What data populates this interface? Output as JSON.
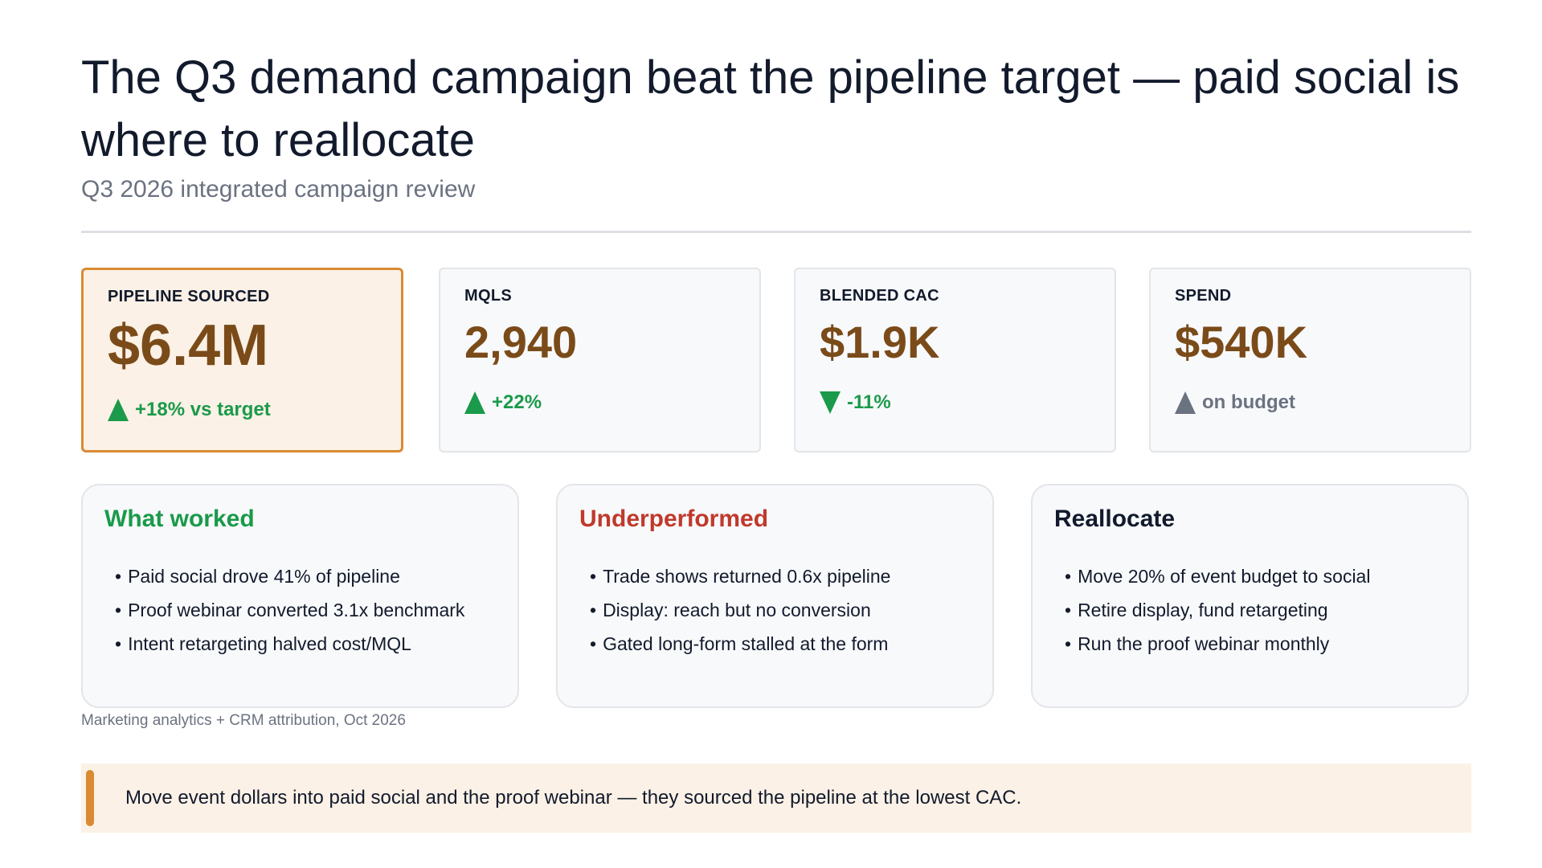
{
  "header": {
    "title": "The Q3 demand campaign beat the pipeline target — paid social is where to reallocate",
    "subtitle": "Q3 2026 integrated campaign review"
  },
  "kpis": [
    {
      "label": "PIPELINE SOURCED",
      "value": "$6.4M",
      "delta": "+18% vs target",
      "direction": "up",
      "tone": "positive"
    },
    {
      "label": "MQLS",
      "value": "2,940",
      "delta": "+22%",
      "direction": "up",
      "tone": "positive"
    },
    {
      "label": "BLENDED CAC",
      "value": "$1.9K",
      "delta": "-11%",
      "direction": "down",
      "tone": "positive"
    },
    {
      "label": "SPEND",
      "value": "$540K",
      "delta": "on budget",
      "direction": "up",
      "tone": "neutral"
    }
  ],
  "cards": [
    {
      "title": "What worked",
      "color": "#1a9a4a",
      "items": [
        "Paid social drove 41% of pipeline",
        "Proof webinar converted 3.1x benchmark",
        "Intent retargeting halved cost/MQL"
      ]
    },
    {
      "title": "Underperformed",
      "color": "#c0392b",
      "items": [
        "Trade shows returned 0.6x pipeline",
        "Display: reach but no conversion",
        "Gated long-form stalled at the form"
      ]
    },
    {
      "title": "Reallocate",
      "color": "#121a2c",
      "items": [
        "Move 20% of event budget to social",
        "Retire display, fund retargeting",
        "Run the proof webinar monthly"
      ]
    }
  ],
  "source": "Marketing analytics + CRM attribution, Oct 2026",
  "callout": "Move event dollars into paid social and the proof webinar — they sourced the pipeline at the lowest CAC.",
  "colors": {
    "accent": "#d98a33",
    "value": "#7a4b19",
    "positive": "#1a9a4a",
    "negative": "#c0392b",
    "neutral": "#6b7280"
  }
}
